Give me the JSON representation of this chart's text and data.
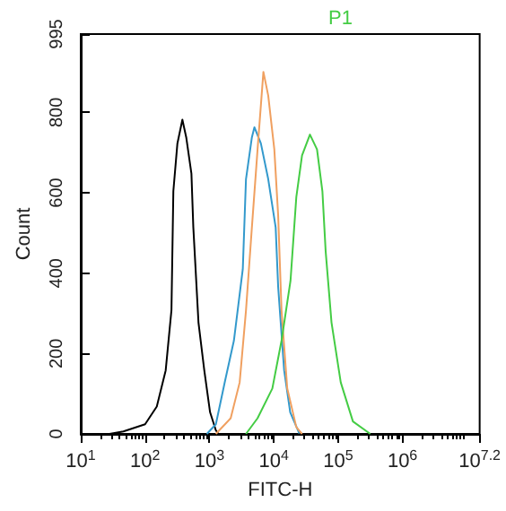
{
  "chart_data": {
    "type": "line",
    "title": "P1",
    "xlabel": "FITC-H",
    "ylabel": "Count",
    "log": "x",
    "grid": false,
    "xlim": [
      10,
      15848932
    ],
    "xticks": [
      {
        "value": 10,
        "label": "10$^{1}$"
      },
      {
        "value": 100,
        "label": "10$^{2}$"
      },
      {
        "value": 1000,
        "label": "10$^{3}$"
      },
      {
        "value": 10000,
        "label": "10$^{4}$"
      },
      {
        "value": 100000,
        "label": "10$^{5}$"
      },
      {
        "value": 1000000,
        "label": "10$^{6}$"
      },
      {
        "value": 15848932,
        "label": "10$^{7.2}$"
      }
    ],
    "ylim": [
      0,
      995
    ],
    "yticks": [
      0,
      200,
      400,
      600,
      800,
      995
    ],
    "series": [
      {
        "color": "#000000",
        "x": [
          28,
          46,
          100,
          152,
          209,
          257,
          275,
          318,
          380,
          436,
          525,
          562,
          676,
          832,
          1023,
          1259,
          1380
        ],
        "values": [
          0,
          6,
          24,
          68,
          158,
          308,
          604,
          723,
          782,
          738,
          648,
          514,
          277,
          158,
          54,
          9,
          0
        ]
      },
      {
        "color": "#3399cc",
        "x": [
          912,
          1259,
          1738,
          2400,
          3300,
          3700,
          4570,
          5000,
          6300,
          8200,
          10700,
          11700,
          14500,
          18000,
          25000
        ],
        "values": [
          0,
          24,
          130,
          232,
          410,
          634,
          738,
          763,
          723,
          634,
          514,
          366,
          158,
          54,
          1
        ]
      },
      {
        "color": "#f0a060",
        "x": [
          1259,
          2140,
          2950,
          3700,
          4570,
          5600,
          6900,
          8200,
          10200,
          11700,
          13200,
          16200,
          22400,
          27500
        ],
        "values": [
          0,
          39,
          128,
          307,
          514,
          708,
          901,
          842,
          708,
          544,
          307,
          113,
          17,
          0
        ]
      },
      {
        "color": "#44cc44",
        "x": [
          3700,
          5600,
          9500,
          13200,
          18200,
          22400,
          27500,
          36500,
          47000,
          57000,
          64000,
          79000,
          110000,
          170000,
          316000
        ],
        "values": [
          0,
          39,
          113,
          232,
          381,
          589,
          693,
          745,
          708,
          604,
          455,
          277,
          128,
          31,
          0
        ]
      }
    ]
  }
}
